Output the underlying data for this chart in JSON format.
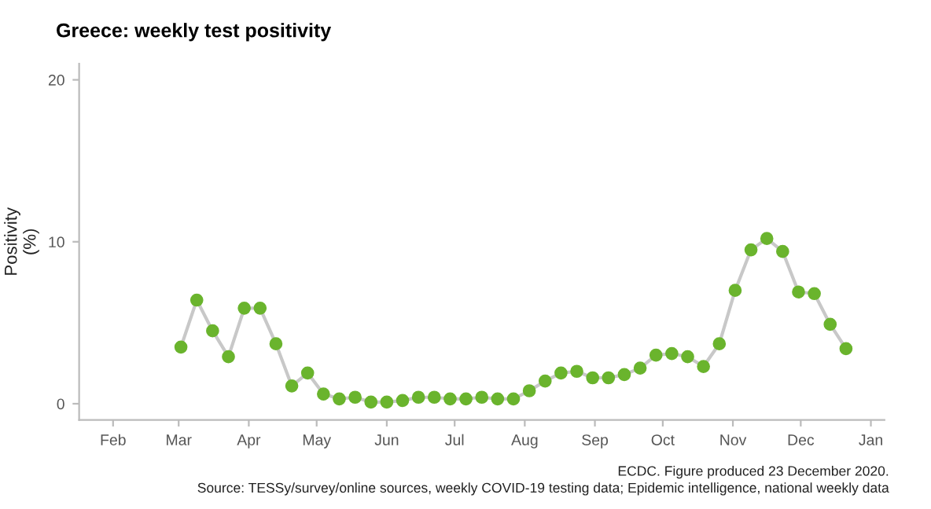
{
  "chart_data": {
    "type": "line",
    "title": "Greece: weekly test positivity",
    "ylabel": "Positivity\n(%)",
    "x": [
      "2020-03-02",
      "2020-03-09",
      "2020-03-16",
      "2020-03-23",
      "2020-03-30",
      "2020-04-06",
      "2020-04-13",
      "2020-04-20",
      "2020-04-27",
      "2020-05-04",
      "2020-05-11",
      "2020-05-18",
      "2020-05-25",
      "2020-06-01",
      "2020-06-08",
      "2020-06-15",
      "2020-06-22",
      "2020-06-29",
      "2020-07-06",
      "2020-07-13",
      "2020-07-20",
      "2020-07-27",
      "2020-08-03",
      "2020-08-10",
      "2020-08-17",
      "2020-08-24",
      "2020-08-31",
      "2020-09-07",
      "2020-09-14",
      "2020-09-21",
      "2020-09-28",
      "2020-10-05",
      "2020-10-12",
      "2020-10-19",
      "2020-10-26",
      "2020-11-02",
      "2020-11-09",
      "2020-11-16",
      "2020-11-23",
      "2020-11-30",
      "2020-12-07",
      "2020-12-14",
      "2020-12-21"
    ],
    "series": [
      {
        "color": "#6ab42d",
        "values": [
          3.5,
          6.4,
          4.5,
          2.9,
          5.9,
          5.9,
          3.7,
          1.1,
          1.9,
          0.6,
          0.3,
          0.4,
          0.1,
          0.1,
          0.2,
          0.4,
          0.4,
          0.3,
          0.3,
          0.4,
          0.3,
          0.3,
          0.8,
          1.4,
          1.9,
          2.0,
          1.6,
          1.6,
          1.8,
          2.2,
          3.0,
          3.1,
          2.9,
          2.3,
          3.7,
          7.0,
          9.5,
          10.2,
          9.4,
          6.9,
          6.8,
          4.9,
          3.4
        ]
      }
    ],
    "marker": "circle",
    "line_style": "solid",
    "grid": false,
    "legend": false,
    "xlim": [
      "2020-01-17",
      "2021-01-07"
    ],
    "xticks": [
      {
        "value": "2020-02-01",
        "label": "Feb"
      },
      {
        "value": "2020-03-01",
        "label": "Mar"
      },
      {
        "value": "2020-04-01",
        "label": "Apr"
      },
      {
        "value": "2020-05-01",
        "label": "May"
      },
      {
        "value": "2020-06-01",
        "label": "Jun"
      },
      {
        "value": "2020-07-01",
        "label": "Jul"
      },
      {
        "value": "2020-08-01",
        "label": "Aug"
      },
      {
        "value": "2020-09-01",
        "label": "Sep"
      },
      {
        "value": "2020-10-01",
        "label": "Oct"
      },
      {
        "value": "2020-11-01",
        "label": "Nov"
      },
      {
        "value": "2020-12-01",
        "label": "Dec"
      },
      {
        "value": "2021-01-01",
        "label": "Jan"
      }
    ],
    "ylim": [
      -1,
      21
    ],
    "yticks": [
      0,
      10,
      20
    ],
    "annotations": [
      "ECDC. Figure produced 23 December 2020.",
      "Source: TESSy/survey/online sources, weekly COVID-19 testing data; Epidemic intelligence, national weekly data"
    ]
  }
}
